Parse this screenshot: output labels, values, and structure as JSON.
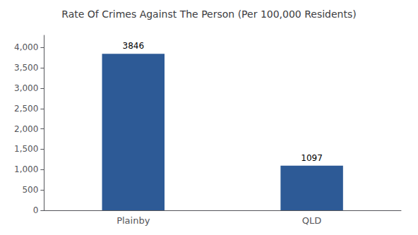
{
  "chart_data": {
    "type": "bar",
    "title": "Rate Of Crimes Against The Person (Per 100,000 Residents)",
    "categories": [
      "Plainby",
      "QLD"
    ],
    "values": [
      3846,
      1097
    ],
    "color": "#2d5a96",
    "ylim": [
      0,
      4300
    ],
    "yticks": [
      0,
      500,
      1000,
      1500,
      2000,
      2500,
      3000,
      3500,
      4000
    ],
    "grid": false,
    "data_labels": true
  }
}
